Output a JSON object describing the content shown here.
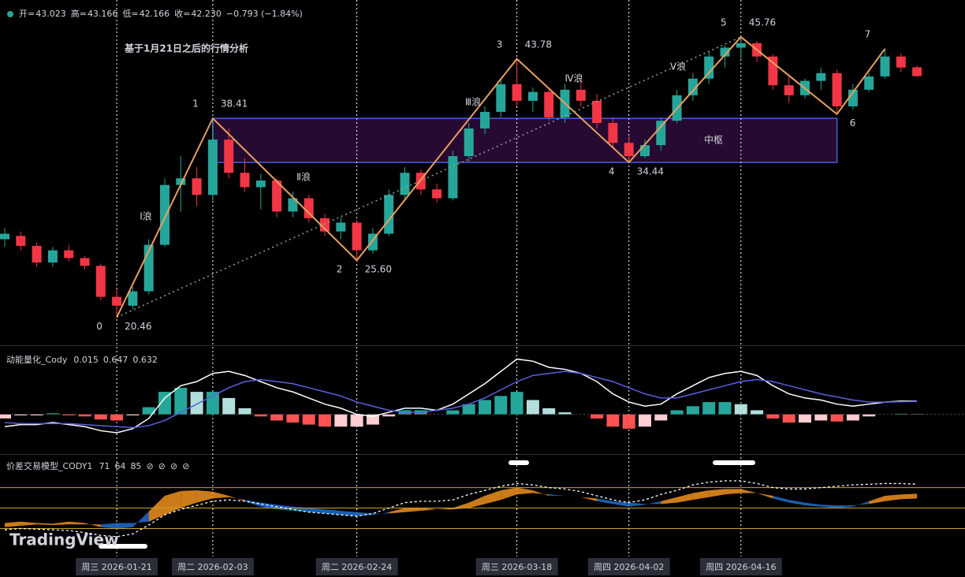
{
  "chart_data": [
    {
      "type": "candlestick",
      "title": "基于1月21日之后的行情分析",
      "header": {
        "labels": [
          "开=",
          "高=",
          "低=",
          "收="
        ],
        "value_labels": [
          "43.023",
          "43.166",
          "42.166",
          "42.230"
        ],
        "change": "−0.793 (−1.84%)"
      },
      "categories": [
        null,
        null,
        null,
        null,
        null,
        null,
        null,
        "周三 2026-01-21",
        null,
        null,
        null,
        null,
        null,
        "周二 2026-02-03",
        null,
        null,
        null,
        null,
        null,
        null,
        null,
        null,
        "周二 2026-02-24",
        null,
        null,
        null,
        null,
        null,
        null,
        null,
        null,
        null,
        "周三 2026-03-18",
        null,
        null,
        null,
        null,
        null,
        null,
        "周四 2026-04-02",
        null,
        null,
        null,
        null,
        null,
        null,
        "周四 2026-04-16",
        null,
        null,
        null,
        null,
        null,
        null,
        null,
        null,
        null,
        null,
        null
      ],
      "open": [
        27.5,
        27.8,
        26.9,
        25.4,
        26.5,
        25.8,
        25.1,
        22.3,
        21.5,
        22.8,
        27.0,
        32.4,
        33.0,
        31.5,
        36.5,
        33.5,
        32.2,
        32.8,
        30.0,
        31.2,
        29.4,
        28.2,
        29.0,
        26.5,
        28.0,
        31.5,
        33.5,
        32.0,
        31.2,
        35.0,
        37.5,
        39.0,
        41.5,
        40.0,
        40.8,
        38.5,
        41.0,
        40.0,
        38.0,
        36.2,
        35.0,
        36.0,
        38.2,
        40.5,
        42.0,
        44.0,
        44.8,
        45.2,
        44.0,
        41.4,
        40.5,
        41.8,
        42.5,
        39.5,
        41.0,
        42.2,
        44.0,
        43.023
      ],
      "high": [
        28.5,
        28.2,
        27.2,
        26.8,
        27.0,
        26.0,
        25.3,
        23.0,
        23.2,
        27.5,
        33.0,
        35.0,
        34.0,
        38.41,
        37.5,
        34.8,
        33.4,
        33.0,
        31.8,
        31.5,
        29.8,
        29.5,
        29.2,
        28.5,
        32.0,
        34.0,
        33.8,
        32.5,
        35.5,
        38.0,
        39.5,
        42.0,
        43.78,
        41.2,
        41.0,
        41.5,
        41.8,
        40.6,
        38.5,
        36.8,
        36.5,
        38.5,
        41.0,
        42.5,
        44.5,
        45.0,
        45.76,
        45.4,
        44.2,
        42.2,
        42.0,
        43.0,
        42.8,
        41.5,
        42.5,
        44.7,
        44.3,
        43.166
      ],
      "low": [
        26.8,
        26.5,
        25.0,
        25.0,
        25.5,
        24.8,
        22.0,
        20.46,
        21.2,
        22.5,
        26.8,
        30.0,
        30.5,
        31.0,
        33.0,
        31.8,
        30.2,
        29.5,
        29.5,
        29.0,
        27.8,
        27.5,
        25.6,
        26.2,
        27.8,
        31.0,
        31.5,
        30.8,
        31.0,
        34.5,
        37.0,
        38.5,
        39.5,
        39.0,
        38.2,
        38.0,
        39.5,
        37.5,
        35.8,
        34.44,
        34.8,
        35.5,
        38.0,
        40.0,
        41.5,
        43.0,
        43.8,
        43.5,
        41.0,
        39.8,
        40.2,
        41.0,
        38.8,
        39.2,
        40.8,
        42.0,
        42.6,
        42.166
      ],
      "close": [
        28.0,
        26.9,
        25.4,
        26.5,
        25.8,
        25.1,
        22.3,
        21.5,
        22.8,
        27.0,
        32.4,
        33.0,
        31.5,
        36.5,
        33.5,
        32.2,
        32.8,
        30.0,
        31.2,
        29.4,
        28.2,
        29.0,
        26.5,
        28.0,
        31.5,
        33.5,
        32.0,
        31.2,
        35.0,
        37.5,
        39.0,
        41.5,
        40.0,
        40.8,
        38.5,
        41.0,
        40.0,
        38.0,
        36.2,
        35.0,
        36.0,
        38.2,
        40.5,
        42.0,
        44.0,
        44.8,
        45.2,
        44.0,
        41.4,
        40.5,
        41.8,
        42.5,
        39.5,
        41.0,
        42.2,
        44.0,
        43.0,
        42.23
      ],
      "up_color": "#26a69a",
      "down_color": "#f23645",
      "ylim": [
        18,
        49.1
      ],
      "pivots": {
        "labels": [
          "0",
          "1",
          "2",
          "3",
          "4",
          "5",
          "6",
          "7"
        ],
        "x": [
          7,
          13,
          22,
          32,
          39,
          46,
          52,
          55
        ],
        "values": [
          20.46,
          38.41,
          25.6,
          43.78,
          34.44,
          45.76,
          38.8,
          44.7
        ],
        "value_labels": [
          "20.46",
          "38.41",
          "25.60",
          "43.78",
          "34.44",
          "45.76",
          null,
          null
        ],
        "color": "#e8a060"
      },
      "waves": [
        "Ⅰ浪",
        "Ⅱ浪",
        "Ⅲ浪",
        "Ⅳ浪",
        "Ⅴ浪"
      ],
      "zhongshu": {
        "label": "中枢",
        "top": 38.41,
        "bottom": 34.44
      }
    },
    {
      "type": "macd",
      "title": "动能量化_Cody",
      "ylim": [
        -1.9,
        3.3
      ],
      "series": [
        {
          "color": "#26a69a",
          "values": [
            -0.2,
            -0.05,
            -0.05,
            0.05,
            -0.05,
            -0.1,
            -0.25,
            -0.3,
            -0.05,
            0.35,
            1.1,
            1.3,
            1.1,
            1.1,
            0.8,
            0.3,
            -0.1,
            -0.3,
            -0.4,
            -0.5,
            -0.6,
            -0.6,
            -0.6,
            -0.5,
            -0.1,
            0.2,
            0.2,
            0.0,
            0.2,
            0.5,
            0.7,
            0.9,
            1.1,
            0.7,
            0.3,
            0.1,
            0.0,
            -0.2,
            -0.6,
            -0.7,
            -0.6,
            -0.3,
            0.2,
            0.4,
            0.6,
            0.6,
            0.5,
            0.2,
            -0.2,
            -0.4,
            -0.4,
            -0.3,
            -0.35,
            -0.3,
            -0.1,
            0.0,
            0.03,
            0.015
          ]
        },
        {
          "color": "#ffffff",
          "values": [
            -0.6,
            -0.5,
            -0.5,
            -0.4,
            -0.5,
            -0.6,
            -0.8,
            -0.9,
            -0.7,
            -0.2,
            0.8,
            1.4,
            1.6,
            2.0,
            2.1,
            1.9,
            1.6,
            1.3,
            1.1,
            0.8,
            0.5,
            0.3,
            0.0,
            -0.1,
            0.1,
            0.3,
            0.3,
            0.2,
            0.5,
            1.0,
            1.5,
            2.1,
            2.7,
            2.6,
            2.3,
            2.2,
            2.0,
            1.6,
            1.0,
            0.6,
            0.4,
            0.5,
            1.0,
            1.4,
            1.8,
            2.0,
            2.1,
            1.9,
            1.4,
            1.0,
            0.8,
            0.7,
            0.5,
            0.4,
            0.5,
            0.6,
            0.65,
            0.647
          ]
        },
        {
          "color": "#5b5fe0",
          "values": [
            -0.4,
            -0.45,
            -0.45,
            -0.45,
            -0.45,
            -0.5,
            -0.55,
            -0.6,
            -0.65,
            -0.55,
            -0.3,
            0.1,
            0.5,
            0.9,
            1.3,
            1.6,
            1.7,
            1.6,
            1.5,
            1.3,
            1.1,
            0.9,
            0.6,
            0.4,
            0.2,
            0.1,
            0.1,
            0.2,
            0.3,
            0.5,
            0.8,
            1.2,
            1.6,
            1.9,
            2.0,
            2.1,
            2.0,
            1.8,
            1.6,
            1.3,
            1.0,
            0.8,
            0.8,
            1.0,
            1.2,
            1.4,
            1.6,
            1.7,
            1.6,
            1.4,
            1.2,
            1.0,
            0.85,
            0.7,
            0.6,
            0.6,
            0.62,
            0.632
          ]
        }
      ]
    },
    {
      "type": "band",
      "title": "价差交易模型_CODY1",
      "ylim": [
        -20,
        127
      ],
      "levels": [
        80,
        50,
        20
      ],
      "level_color": "#c9a227",
      "header_symbols": [
        "⊘",
        "⊘",
        "⊘",
        "⊘"
      ],
      "up_color": "#f0901e",
      "down_color": "#1e6fd0",
      "series": [
        {
          "color": "#f0601e",
          "values": [
            28,
            30,
            28,
            27,
            30,
            28,
            22,
            20,
            22,
            45,
            68,
            75,
            76,
            74,
            68,
            60,
            52,
            48,
            46,
            44,
            42,
            40,
            38,
            40,
            44,
            50,
            50,
            48,
            50,
            58,
            68,
            76,
            80,
            76,
            68,
            68,
            66,
            60,
            56,
            52,
            55,
            60,
            66,
            72,
            76,
            78,
            78,
            72,
            64,
            58,
            54,
            52,
            50,
            52,
            60,
            68,
            70,
            71
          ]
        },
        {
          "color": "#f0a030",
          "values": [
            22,
            24,
            26,
            25,
            26,
            26,
            26,
            28,
            28,
            30,
            40,
            50,
            58,
            64,
            66,
            62,
            58,
            55,
            52,
            50,
            48,
            46,
            44,
            42,
            42,
            44,
            46,
            48,
            48,
            50,
            56,
            62,
            70,
            72,
            70,
            68,
            66,
            64,
            60,
            58,
            56,
            56,
            58,
            62,
            66,
            70,
            72,
            72,
            68,
            62,
            58,
            55,
            54,
            54,
            56,
            60,
            63,
            64
          ]
        },
        {
          "color": "#ffffff",
          "values": [
            18,
            20,
            19,
            18,
            17,
            14,
            10,
            8,
            12,
            25,
            40,
            48,
            54,
            60,
            62,
            60,
            56,
            52,
            48,
            44,
            42,
            40,
            38,
            42,
            50,
            58,
            60,
            60,
            62,
            70,
            76,
            82,
            86,
            84,
            80,
            78,
            74,
            68,
            62,
            58,
            62,
            70,
            76,
            84,
            88,
            90,
            90,
            86,
            80,
            78,
            78,
            80,
            82,
            84,
            85,
            86,
            86,
            85
          ]
        }
      ]
    }
  ],
  "watermark": "TradingView"
}
